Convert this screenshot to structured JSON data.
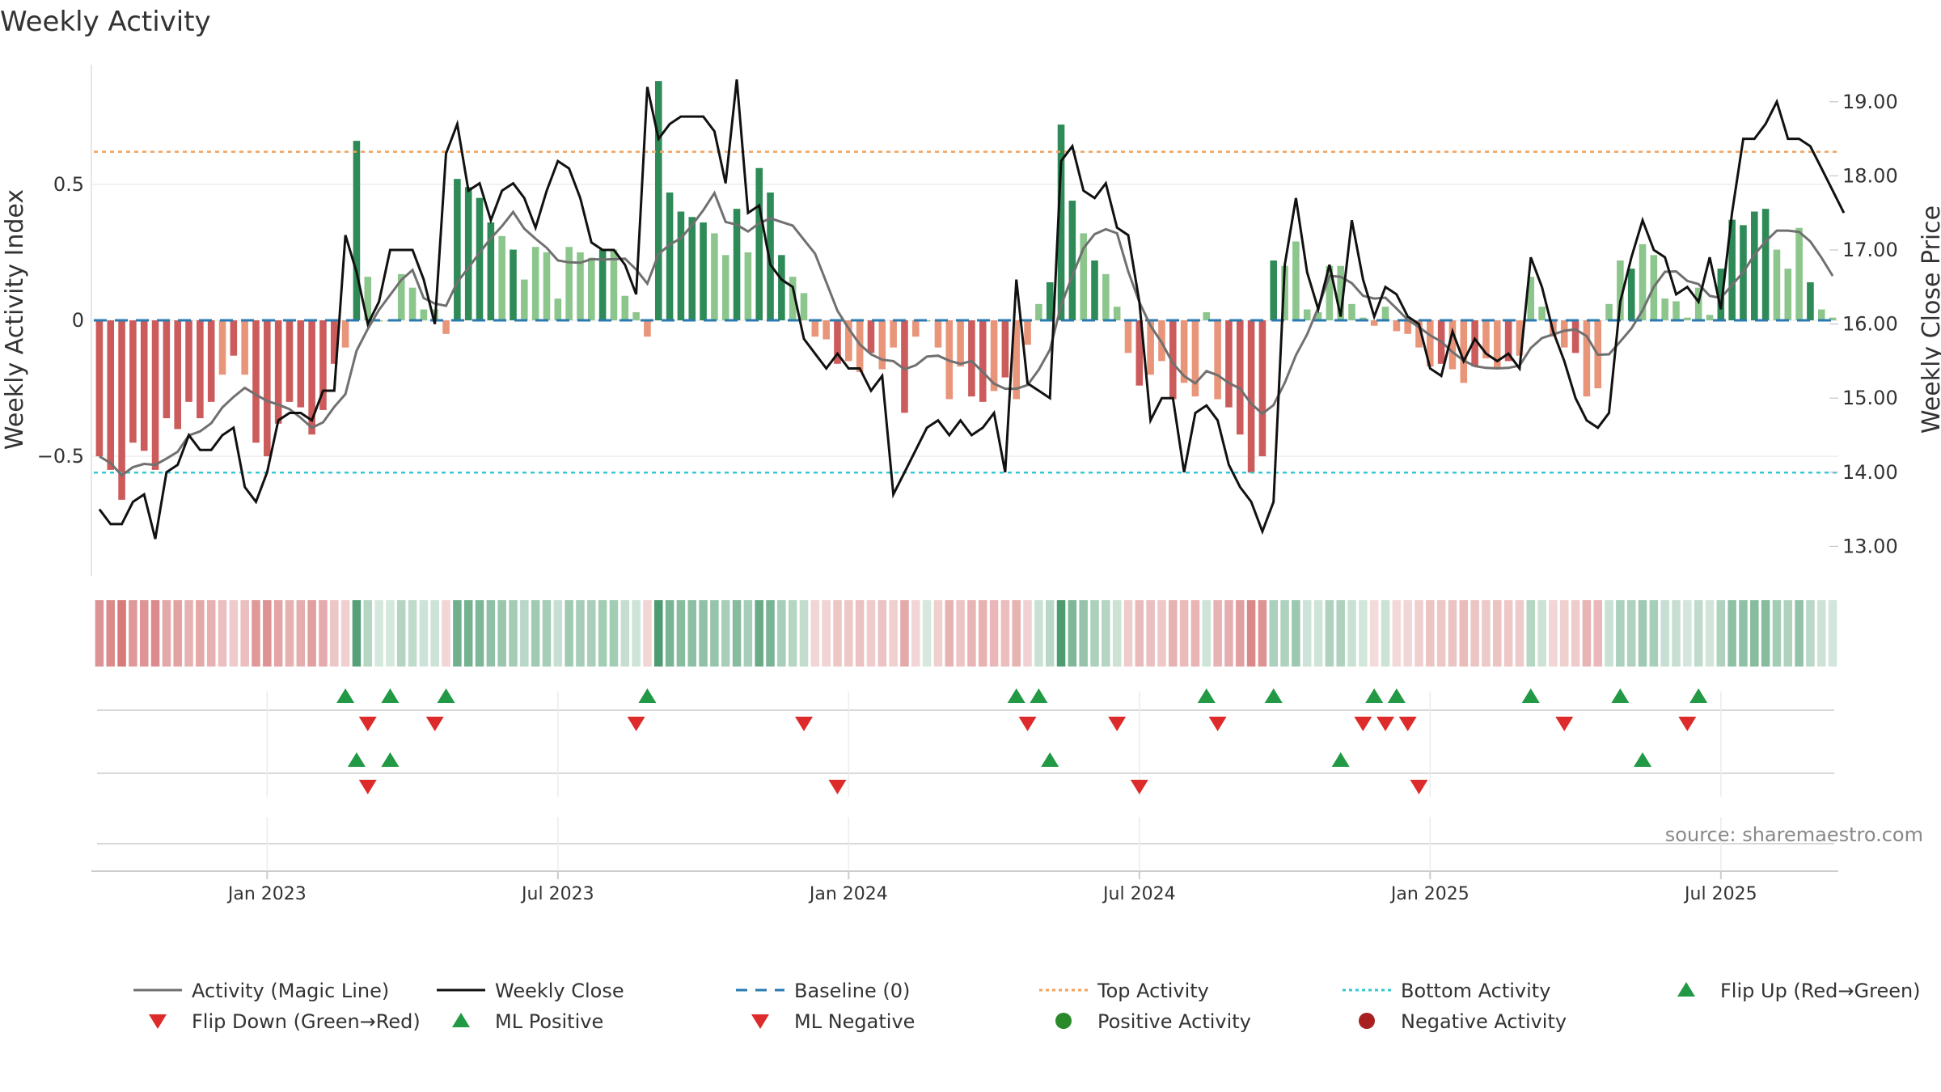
{
  "title": "Weekly Activity",
  "source": "source: sharemaestro.com",
  "chart_data": {
    "type": "bar",
    "y_left": {
      "label": "Weekly Activity Index",
      "ticks": [
        -0.5,
        0,
        0.5
      ],
      "tick_labels": [
        "−0.5",
        "0",
        "0.5"
      ],
      "ylim": [
        -0.94,
        0.94
      ]
    },
    "y_right": {
      "label": "Weekly Close Price",
      "ticks": [
        13,
        14,
        15,
        16,
        17,
        18,
        19
      ],
      "tick_labels": [
        "13.00",
        "14.00",
        "15.00",
        "16.00",
        "17.00",
        "18.00",
        "19.00"
      ],
      "ylim": [
        12.6,
        19.5
      ]
    },
    "x_ticks": [
      {
        "label": "Jan 2023",
        "index": 15
      },
      {
        "label": "Jul 2023",
        "index": 41
      },
      {
        "label": "Jan 2024",
        "index": 67
      },
      {
        "label": "Jul 2024",
        "index": 93
      },
      {
        "label": "Jan 2025",
        "index": 119
      },
      {
        "label": "Jul 2025",
        "index": 145
      }
    ],
    "top_activity": 0.62,
    "bottom_activity": -0.56,
    "baseline": 0,
    "activity": [
      -0.5,
      -0.55,
      -0.66,
      -0.45,
      -0.48,
      -0.55,
      -0.36,
      -0.4,
      -0.3,
      -0.36,
      -0.3,
      -0.2,
      -0.13,
      -0.2,
      -0.45,
      -0.5,
      -0.38,
      -0.3,
      -0.32,
      -0.42,
      -0.33,
      -0.16,
      -0.1,
      0.66,
      0.16,
      0.0,
      0.0,
      0.17,
      0.12,
      0.04,
      0.04,
      -0.05,
      0.52,
      0.49,
      0.45,
      0.36,
      0.31,
      0.26,
      0.15,
      0.27,
      0.25,
      0.08,
      0.27,
      0.25,
      0.23,
      0.26,
      0.26,
      0.09,
      0.03,
      -0.06,
      0.88,
      0.47,
      0.4,
      0.38,
      0.36,
      0.32,
      0.24,
      0.41,
      0.25,
      0.56,
      0.47,
      0.24,
      0.16,
      0.1,
      -0.06,
      -0.07,
      -0.16,
      -0.15,
      -0.19,
      -0.12,
      -0.18,
      -0.1,
      -0.34,
      -0.06,
      0.0,
      -0.1,
      -0.29,
      -0.17,
      -0.28,
      -0.3,
      -0.26,
      -0.21,
      -0.29,
      -0.09,
      0.06,
      0.14,
      0.72,
      0.44,
      0.32,
      0.22,
      0.17,
      0.05,
      -0.12,
      -0.24,
      -0.2,
      -0.15,
      -0.29,
      -0.23,
      -0.28,
      0.03,
      -0.29,
      -0.32,
      -0.42,
      -0.56,
      -0.5,
      0.22,
      0.2,
      0.29,
      0.04,
      0.03,
      0.2,
      0.2,
      0.06,
      0.01,
      -0.02,
      0.05,
      -0.04,
      -0.05,
      -0.1,
      -0.17,
      -0.16,
      -0.18,
      -0.23,
      -0.17,
      -0.14,
      -0.18,
      -0.15,
      -0.13,
      0.16,
      0.05,
      -0.06,
      -0.1,
      -0.12,
      -0.28,
      -0.25,
      0.06,
      0.22,
      0.19,
      0.28,
      0.24,
      0.08,
      0.07,
      0.01,
      0.12,
      0.02,
      0.19,
      0.37,
      0.35,
      0.4,
      0.41,
      0.26,
      0.19,
      0.34,
      0.14,
      0.04,
      0.01
    ],
    "weekly_close": [
      13.5,
      13.3,
      13.3,
      13.6,
      13.7,
      13.1,
      14.0,
      14.1,
      14.5,
      14.3,
      14.3,
      14.5,
      14.6,
      13.8,
      13.6,
      14.0,
      14.7,
      14.8,
      14.8,
      14.7,
      15.1,
      15.1,
      17.2,
      16.7,
      16.0,
      16.3,
      17.0,
      17.0,
      17.0,
      16.6,
      16.0,
      18.3,
      18.7,
      17.8,
      17.9,
      17.4,
      17.8,
      17.9,
      17.7,
      17.3,
      17.8,
      18.2,
      18.1,
      17.7,
      17.1,
      17.0,
      17.0,
      16.8,
      16.4,
      19.2,
      18.5,
      18.7,
      18.8,
      18.8,
      18.8,
      18.6,
      17.9,
      19.3,
      17.5,
      17.6,
      16.8,
      16.6,
      16.5,
      15.8,
      15.6,
      15.4,
      15.6,
      15.4,
      15.4,
      15.1,
      15.3,
      13.7,
      14.0,
      14.3,
      14.6,
      14.7,
      14.5,
      14.7,
      14.5,
      14.6,
      14.8,
      14.0,
      16.6,
      15.2,
      15.1,
      15.0,
      18.2,
      18.4,
      17.8,
      17.7,
      17.9,
      17.3,
      17.2,
      16.3,
      14.7,
      15.0,
      15.0,
      14.0,
      14.8,
      14.9,
      14.7,
      14.1,
      13.8,
      13.6,
      13.2,
      13.6,
      16.8,
      17.7,
      16.7,
      16.2,
      16.8,
      16.1,
      17.4,
      16.6,
      16.1,
      16.5,
      16.4,
      16.1,
      16.0,
      15.4,
      15.3,
      15.9,
      15.5,
      15.8,
      15.6,
      15.5,
      15.6,
      15.4,
      16.9,
      16.5,
      15.9,
      15.5,
      15.0,
      14.7,
      14.6,
      14.8,
      16.3,
      16.9,
      17.4,
      17.0,
      16.9,
      16.4,
      16.5,
      16.3,
      16.9,
      16.2,
      17.5,
      18.5,
      18.5,
      18.7,
      19.0,
      18.5,
      18.5,
      18.4,
      18.1,
      17.8,
      17.5
    ],
    "flip_up_indices": [
      22,
      26,
      31,
      49,
      82,
      84,
      99,
      105,
      114,
      116,
      128,
      136,
      143
    ],
    "flip_down_indices": [
      24,
      30,
      48,
      63,
      83,
      91,
      100,
      113,
      115,
      117,
      131,
      142
    ],
    "ml_positive_indices": [
      23,
      26,
      85,
      111,
      138
    ],
    "ml_negative_indices": [
      24,
      66,
      93,
      118
    ],
    "legend": [
      "Activity (Magic Line)",
      "Weekly Close",
      "Baseline (0)",
      "Top Activity",
      "Bottom Activity",
      "Flip Up (Red→Green)",
      "Flip Down (Green→Red)",
      "ML Positive",
      "ML Negative",
      "Positive Activity",
      "Negative Activity"
    ],
    "colors": {
      "strong_green": "#2e8a57",
      "light_green": "#8cc68c",
      "strong_red": "#cc5b5b",
      "light_red": "#e8957a",
      "magic_line": "#707070",
      "close": "#111111",
      "baseline": "#2a7ab0",
      "top": "#f2a25b",
      "bottom": "#35c8d2",
      "marker_up": "#229944",
      "marker_down": "#dd2a2a",
      "positive_dot": "#2a8a2a",
      "negative_dot": "#a82020"
    }
  }
}
